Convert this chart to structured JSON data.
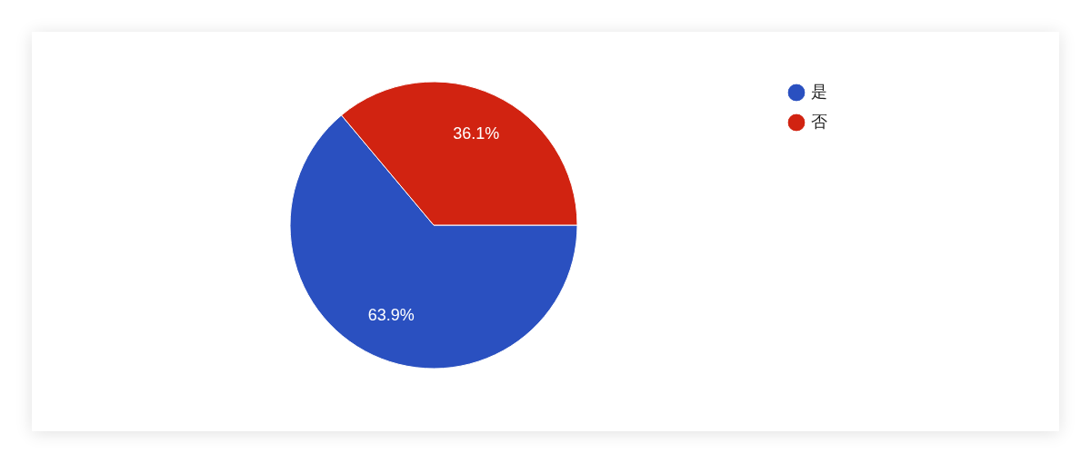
{
  "chart_data": {
    "type": "pie",
    "categories": [
      "是",
      "否"
    ],
    "values": [
      63.9,
      36.1
    ],
    "colors": [
      "#2a50c0",
      "#d12311"
    ],
    "value_labels": [
      "63.9%",
      "36.1%"
    ],
    "legend": "top right"
  }
}
